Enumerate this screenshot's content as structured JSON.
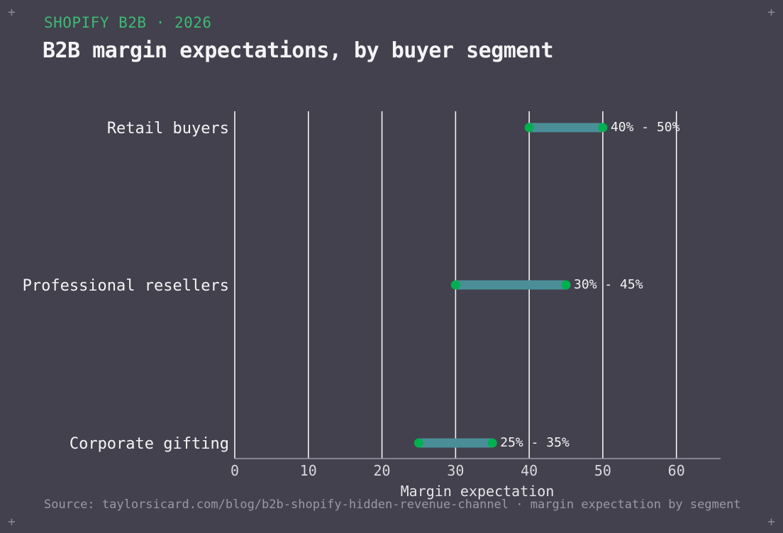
{
  "header": {
    "eyebrow": "SHOPIFY B2B · 2026",
    "title": "B2B margin expectations, by buyer segment"
  },
  "footer": {
    "source": "Source: taylorsicard.com/blog/b2b-shopify-hidden-revenue-channel · margin expectation by segment"
  },
  "colors": {
    "background": "#42414d",
    "accent": "#3dba75",
    "range_bar": "#4a8f97",
    "endpoint": "#00b050",
    "grid": "#f4f4f6"
  },
  "chart_data": {
    "type": "range_bar",
    "title": "B2B margin expectations, by buyer segment",
    "xlabel": "Margin expectation",
    "ylabel": "",
    "xlim": [
      0,
      66
    ],
    "xticks": [
      0,
      10,
      20,
      30,
      40,
      50,
      60
    ],
    "grid": "vertical",
    "categories": [
      "Retail buyers",
      "Professional resellers",
      "Corporate gifting"
    ],
    "ranges": [
      {
        "category": "Retail buyers",
        "low": 40,
        "high": 50,
        "label": "40% - 50%"
      },
      {
        "category": "Professional resellers",
        "low": 30,
        "high": 45,
        "label": "30% - 45%"
      },
      {
        "category": "Corporate gifting",
        "low": 25,
        "high": 35,
        "label": "25% - 35%"
      }
    ]
  }
}
